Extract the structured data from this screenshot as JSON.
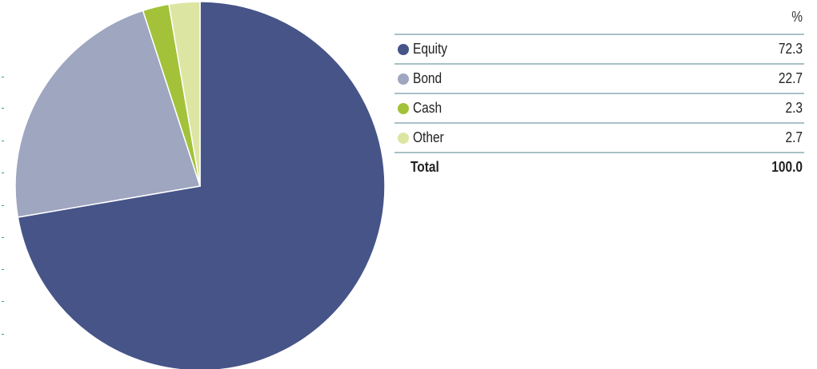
{
  "chart_data": {
    "type": "pie",
    "header": "%",
    "slices": [
      {
        "label": "Equity",
        "value": 72.3,
        "display": "72.3",
        "color": "#465488"
      },
      {
        "label": "Bond",
        "value": 22.7,
        "display": "22.7",
        "color": "#9ea6c0"
      },
      {
        "label": "Cash",
        "value": 2.3,
        "display": "2.3",
        "color": "#a3c239"
      },
      {
        "label": "Other",
        "value": 2.7,
        "display": "2.7",
        "color": "#dde5a3"
      }
    ],
    "total": {
      "label": "Total",
      "display": "100.0"
    },
    "start_angle": "12 o'clock",
    "direction": "clockwise"
  },
  "colors": {
    "row_divider": "#a8c0c7",
    "edge_tick": "#2e9c95"
  }
}
